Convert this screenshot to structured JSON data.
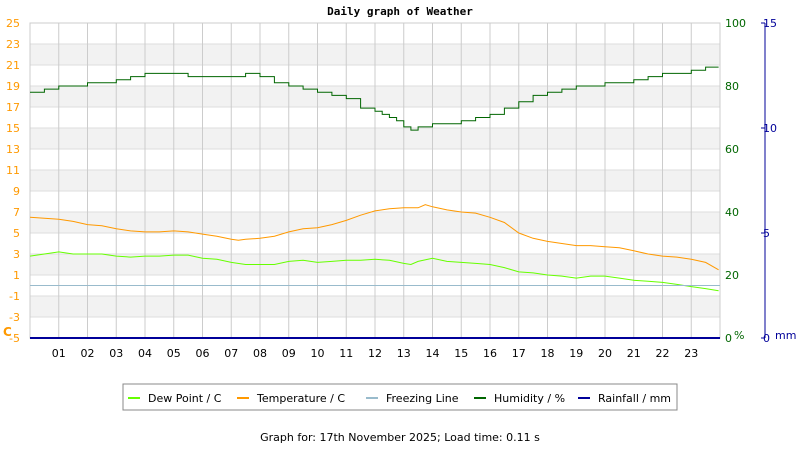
{
  "chart_data": {
    "type": "line",
    "title": "Daily graph of Weather",
    "footer": "Graph for: 17th November 2025; Load time: 0.11 s",
    "x_ticks": [
      "01",
      "02",
      "03",
      "04",
      "05",
      "06",
      "07",
      "08",
      "09",
      "10",
      "11",
      "12",
      "13",
      "14",
      "15",
      "16",
      "17",
      "18",
      "19",
      "20",
      "21",
      "22",
      "23"
    ],
    "x_unit": "hour",
    "x_range": [
      0,
      24
    ],
    "axes": {
      "left": {
        "label": "C",
        "range": [
          -5,
          25
        ],
        "ticks": [
          -5,
          -3,
          -1,
          1,
          3,
          5,
          7,
          9,
          11,
          13,
          15,
          17,
          19,
          21,
          23,
          25
        ],
        "color": "#ff9900"
      },
      "right_humidity": {
        "label": "%",
        "range": [
          0,
          100
        ],
        "ticks": [
          0,
          20,
          40,
          60,
          80,
          100
        ],
        "color": "#006600"
      },
      "right_rain": {
        "label": "mm",
        "range": [
          0,
          15
        ],
        "ticks": [
          0,
          5,
          10,
          15
        ],
        "color": "#000099"
      }
    },
    "grid": true,
    "legend_position": "bottom",
    "series": [
      {
        "name": "Dew Point / C",
        "axis": "left",
        "color": "#66ff00",
        "x": [
          0,
          0.5,
          1,
          1.5,
          2,
          2.5,
          3,
          3.5,
          4,
          4.5,
          5,
          5.5,
          6,
          6.5,
          7,
          7.5,
          8,
          8.5,
          9,
          9.5,
          10,
          10.5,
          11,
          11.5,
          12,
          12.5,
          13,
          13.25,
          13.5,
          14,
          14.5,
          15,
          15.5,
          16,
          16.5,
          17,
          17.5,
          18,
          18.5,
          19,
          19.5,
          20,
          20.5,
          21,
          21.5,
          22,
          22.5,
          23,
          23.5,
          23.95
        ],
        "y": [
          2.8,
          3.0,
          3.2,
          3.0,
          3.0,
          3.0,
          2.8,
          2.7,
          2.8,
          2.8,
          2.9,
          2.9,
          2.6,
          2.5,
          2.2,
          2.0,
          2.0,
          2.0,
          2.3,
          2.4,
          2.2,
          2.3,
          2.4,
          2.4,
          2.5,
          2.4,
          2.1,
          2.0,
          2.3,
          2.6,
          2.3,
          2.2,
          2.1,
          2.0,
          1.7,
          1.3,
          1.2,
          1.0,
          0.9,
          0.7,
          0.9,
          0.9,
          0.7,
          0.5,
          0.4,
          0.3,
          0.1,
          -0.1,
          -0.3,
          -0.5
        ]
      },
      {
        "name": "Temperature / C",
        "axis": "left",
        "color": "#ff9900",
        "x": [
          0,
          0.5,
          1,
          1.5,
          2,
          2.5,
          3,
          3.5,
          4,
          4.5,
          5,
          5.5,
          6,
          6.5,
          7,
          7.25,
          7.5,
          8,
          8.5,
          9,
          9.5,
          10,
          10.5,
          11,
          11.5,
          12,
          12.5,
          13,
          13.5,
          13.75,
          14,
          14.5,
          15,
          15.5,
          16,
          16.5,
          17,
          17.5,
          18,
          18.5,
          19,
          19.5,
          20,
          20.5,
          21,
          21.5,
          22,
          22.5,
          23,
          23.5,
          23.95
        ],
        "y": [
          6.5,
          6.4,
          6.3,
          6.1,
          5.8,
          5.7,
          5.4,
          5.2,
          5.1,
          5.1,
          5.2,
          5.1,
          4.9,
          4.7,
          4.4,
          4.3,
          4.4,
          4.5,
          4.7,
          5.1,
          5.4,
          5.5,
          5.8,
          6.2,
          6.7,
          7.1,
          7.3,
          7.4,
          7.4,
          7.7,
          7.5,
          7.2,
          7.0,
          6.9,
          6.5,
          6.0,
          5.0,
          4.5,
          4.2,
          4.0,
          3.8,
          3.8,
          3.7,
          3.6,
          3.3,
          3.0,
          2.8,
          2.7,
          2.5,
          2.2,
          1.5
        ]
      },
      {
        "name": "Freezing Line",
        "axis": "left",
        "color": "#99bbcc",
        "x": [
          0,
          24
        ],
        "y": [
          0,
          0
        ]
      },
      {
        "name": "Humidity / %",
        "axis": "right_humidity",
        "color": "#006600",
        "x": [
          0,
          0.25,
          0.5,
          1,
          1.5,
          2,
          2.5,
          3,
          3.5,
          4,
          4.5,
          5,
          5.5,
          6,
          6.5,
          7,
          7.5,
          8,
          8.5,
          9,
          9.5,
          10,
          10.5,
          11,
          11.5,
          12,
          12.25,
          12.5,
          12.75,
          13,
          13.25,
          13.5,
          14,
          14.5,
          15,
          15.5,
          16,
          16.5,
          17,
          17.5,
          18,
          18.5,
          19,
          19.5,
          20,
          20.5,
          21,
          21.5,
          22,
          22.5,
          23,
          23.5,
          23.95
        ],
        "y": [
          78,
          78,
          79,
          80,
          80,
          81,
          81,
          82,
          83,
          84,
          84,
          84,
          83,
          83,
          83,
          83,
          84,
          83,
          81,
          80,
          79,
          78,
          77,
          76,
          73,
          72,
          71,
          70,
          69,
          67,
          66,
          67,
          68,
          68,
          69,
          70,
          71,
          73,
          75,
          77,
          78,
          79,
          80,
          80,
          81,
          81,
          82,
          83,
          84,
          84,
          85,
          86,
          86
        ]
      },
      {
        "name": "Rainfall / mm",
        "axis": "right_rain",
        "color": "#000099",
        "x": [
          0,
          24
        ],
        "y": [
          0,
          0
        ]
      }
    ]
  }
}
